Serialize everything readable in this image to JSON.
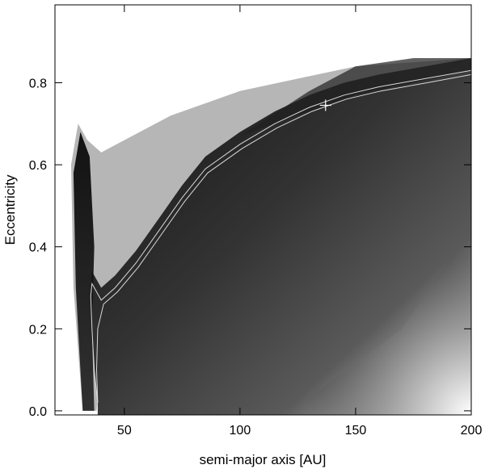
{
  "chart_data": {
    "type": "heatmap",
    "title": "",
    "xlabel": "semi-major axis [AU]",
    "ylabel": "Eccentricity",
    "xlim": [
      20,
      200
    ],
    "ylim": [
      -0.01,
      0.99
    ],
    "x_ticks": [
      {
        "value": 50,
        "label": "50"
      },
      {
        "value": 100,
        "label": "100"
      },
      {
        "value": 150,
        "label": "150"
      },
      {
        "value": 200,
        "label": "200"
      }
    ],
    "y_ticks": [
      {
        "value": 0.0,
        "label": "0.0"
      },
      {
        "value": 0.2,
        "label": "0.2"
      },
      {
        "value": 0.4,
        "label": "0.4"
      },
      {
        "value": 0.6,
        "label": "0.6"
      },
      {
        "value": 0.8,
        "label": "0.8"
      }
    ],
    "colormap": "grayscale",
    "colors": {
      "background": "#ffffff",
      "field_dark": "#141414",
      "field_mid": "#3c3c3c",
      "field_light": "#f0f0f0",
      "contour": "#d9d9d9",
      "marker": "#ffffff"
    },
    "contours": [
      {
        "name": "outer",
        "points": [
          [
            38.5,
            0.02
          ],
          [
            37.0,
            0.1
          ],
          [
            36.0,
            0.2
          ],
          [
            35.5,
            0.28
          ],
          [
            36.0,
            0.31
          ],
          [
            40.0,
            0.27
          ],
          [
            46.0,
            0.3
          ],
          [
            55.0,
            0.36
          ],
          [
            65.0,
            0.44
          ],
          [
            75.0,
            0.52
          ],
          [
            85.0,
            0.59
          ],
          [
            100.0,
            0.65
          ],
          [
            115.0,
            0.7
          ],
          [
            130.0,
            0.74
          ],
          [
            145.0,
            0.77
          ],
          [
            160.0,
            0.79
          ],
          [
            180.0,
            0.81
          ],
          [
            200.0,
            0.83
          ]
        ]
      },
      {
        "name": "inner",
        "points": [
          [
            38.5,
            0.02
          ],
          [
            38.0,
            0.1
          ],
          [
            38.5,
            0.2
          ],
          [
            41.0,
            0.26
          ],
          [
            47.0,
            0.29
          ],
          [
            56.0,
            0.35
          ],
          [
            66.0,
            0.43
          ],
          [
            76.0,
            0.51
          ],
          [
            86.0,
            0.58
          ],
          [
            101.0,
            0.64
          ],
          [
            116.0,
            0.69
          ],
          [
            131.0,
            0.73
          ],
          [
            146.0,
            0.76
          ],
          [
            161.0,
            0.78
          ],
          [
            181.0,
            0.8
          ],
          [
            200.0,
            0.82
          ]
        ]
      }
    ],
    "marker": {
      "symbol": "+",
      "x": 137,
      "y": 0.745
    }
  }
}
